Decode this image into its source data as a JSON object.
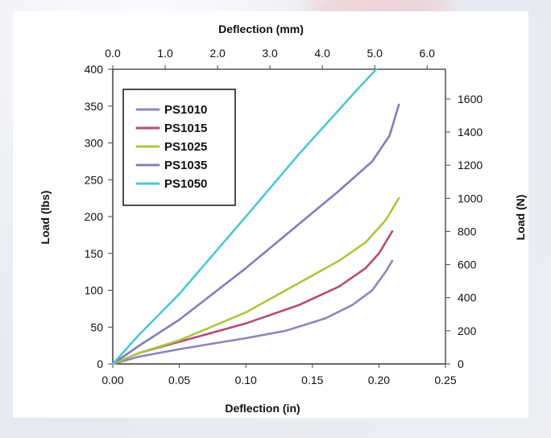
{
  "chart_data": {
    "type": "line",
    "axes": {
      "bottom": {
        "label": "Deflection (in)",
        "min": 0,
        "max": 0.25,
        "ticks": [
          0,
          0.05,
          0.1,
          0.15,
          0.2,
          0.25
        ],
        "tick_labels": [
          "0.00",
          "0.05",
          "0.10",
          "0.15",
          "0.20",
          "0.25"
        ]
      },
      "top": {
        "label": "Deflection (mm)",
        "min": 0,
        "max": 6.35,
        "ticks": [
          0,
          1,
          2,
          3,
          4,
          5,
          6
        ],
        "tick_labels": [
          "0.0",
          "1.0",
          "2.0",
          "3.0",
          "4.0",
          "5.0",
          "6.0"
        ]
      },
      "left": {
        "label": "Load (lbs)",
        "min": 0,
        "max": 400,
        "ticks": [
          0,
          50,
          100,
          150,
          200,
          250,
          300,
          350,
          400
        ],
        "tick_labels": [
          "0",
          "50",
          "100",
          "150",
          "200",
          "250",
          "300",
          "350",
          "400"
        ]
      },
      "right": {
        "label": "Load (N)",
        "min": 0,
        "max": 1779.3,
        "ticks": [
          0,
          200,
          400,
          600,
          800,
          1000,
          1200,
          1400,
          1600
        ],
        "tick_labels": [
          "0",
          "200",
          "400",
          "600",
          "800",
          "1000",
          "1200",
          "1400",
          "1600"
        ]
      }
    },
    "legend": {
      "placement": "top-left"
    },
    "series": [
      {
        "name": "PS1010",
        "color": "#8a87c0",
        "points": [
          [
            0,
            0
          ],
          [
            0.02,
            10
          ],
          [
            0.05,
            20
          ],
          [
            0.1,
            35
          ],
          [
            0.13,
            45
          ],
          [
            0.16,
            62
          ],
          [
            0.18,
            80
          ],
          [
            0.195,
            100
          ],
          [
            0.205,
            125
          ],
          [
            0.21,
            140
          ]
        ]
      },
      {
        "name": "PS1015",
        "color": "#b84a72",
        "points": [
          [
            0,
            0
          ],
          [
            0.02,
            15
          ],
          [
            0.05,
            30
          ],
          [
            0.1,
            55
          ],
          [
            0.14,
            80
          ],
          [
            0.17,
            105
          ],
          [
            0.19,
            130
          ],
          [
            0.2,
            150
          ],
          [
            0.21,
            180
          ]
        ]
      },
      {
        "name": "PS1025",
        "color": "#a8c83e",
        "points": [
          [
            0,
            0
          ],
          [
            0.02,
            15
          ],
          [
            0.05,
            32
          ],
          [
            0.1,
            70
          ],
          [
            0.14,
            110
          ],
          [
            0.17,
            140
          ],
          [
            0.19,
            165
          ],
          [
            0.205,
            195
          ],
          [
            0.215,
            225
          ]
        ]
      },
      {
        "name": "PS1035",
        "color": "#7f7fbf",
        "points": [
          [
            0,
            0
          ],
          [
            0.02,
            25
          ],
          [
            0.05,
            60
          ],
          [
            0.1,
            130
          ],
          [
            0.14,
            190
          ],
          [
            0.17,
            235
          ],
          [
            0.195,
            275
          ],
          [
            0.208,
            310
          ],
          [
            0.215,
            352
          ]
        ]
      },
      {
        "name": "PS1050",
        "color": "#4dc8cf",
        "points": [
          [
            0,
            0
          ],
          [
            0.02,
            40
          ],
          [
            0.05,
            95
          ],
          [
            0.1,
            200
          ],
          [
            0.14,
            285
          ],
          [
            0.17,
            345
          ],
          [
            0.185,
            375
          ],
          [
            0.198,
            400
          ]
        ]
      }
    ]
  }
}
